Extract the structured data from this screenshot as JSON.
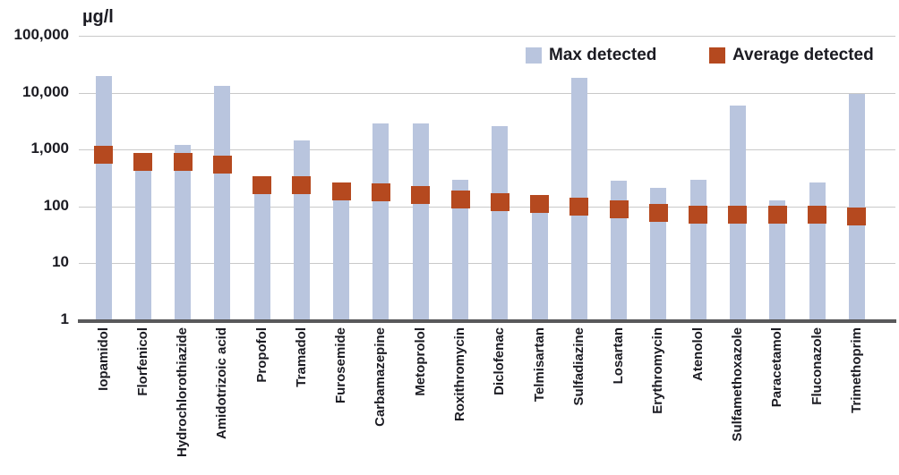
{
  "colors": {
    "max_bar": "#b9c5de",
    "avg_marker": "#b5491f",
    "gridline": "#c9c9c9",
    "axis_line": "#59595b",
    "text": "#1b1b22"
  },
  "chart_data": {
    "type": "bar",
    "title": "",
    "ylabel": "µg/l",
    "xlabel": "",
    "y_scale": "log",
    "ylim": [
      1,
      100000
    ],
    "grid": "horizontal",
    "legend_position": "top-inside",
    "y_ticks": [
      {
        "value": 100000,
        "label": "100,000"
      },
      {
        "value": 10000,
        "label": "10,000"
      },
      {
        "value": 1000,
        "label": "1,000"
      },
      {
        "value": 100,
        "label": "100"
      },
      {
        "value": 10,
        "label": "10"
      },
      {
        "value": 1,
        "label": "1"
      }
    ],
    "categories": [
      "Iopamidol",
      "Florfenicol",
      "Hydrochlorothiazide",
      "Amidotrizoic acid",
      "Propofol",
      "Tramadol",
      "Furosemide",
      "Carbamazepine",
      "Metoprolol",
      "Roxithromycin",
      "Diclofenac",
      "Telmisartan",
      "Sulfadiazine",
      "Losartan",
      "Erythromycin",
      "Atenolol",
      "Sulfamethoxazole",
      "Paracetamol",
      "Fluconazole",
      "Trimethoprim"
    ],
    "series": [
      {
        "name": "Max detected",
        "style": "bar",
        "values": [
          20000,
          800,
          1200,
          13000,
          340,
          1450,
          250,
          2900,
          2900,
          300,
          2600,
          155,
          18000,
          280,
          210,
          300,
          6000,
          130,
          265,
          9500
        ]
      },
      {
        "name": "Average detected",
        "style": "square-marker",
        "values": [
          800,
          600,
          600,
          550,
          240,
          235,
          185,
          175,
          160,
          135,
          120,
          110,
          100,
          88,
          78,
          72,
          72,
          72,
          72,
          66
        ]
      }
    ]
  }
}
